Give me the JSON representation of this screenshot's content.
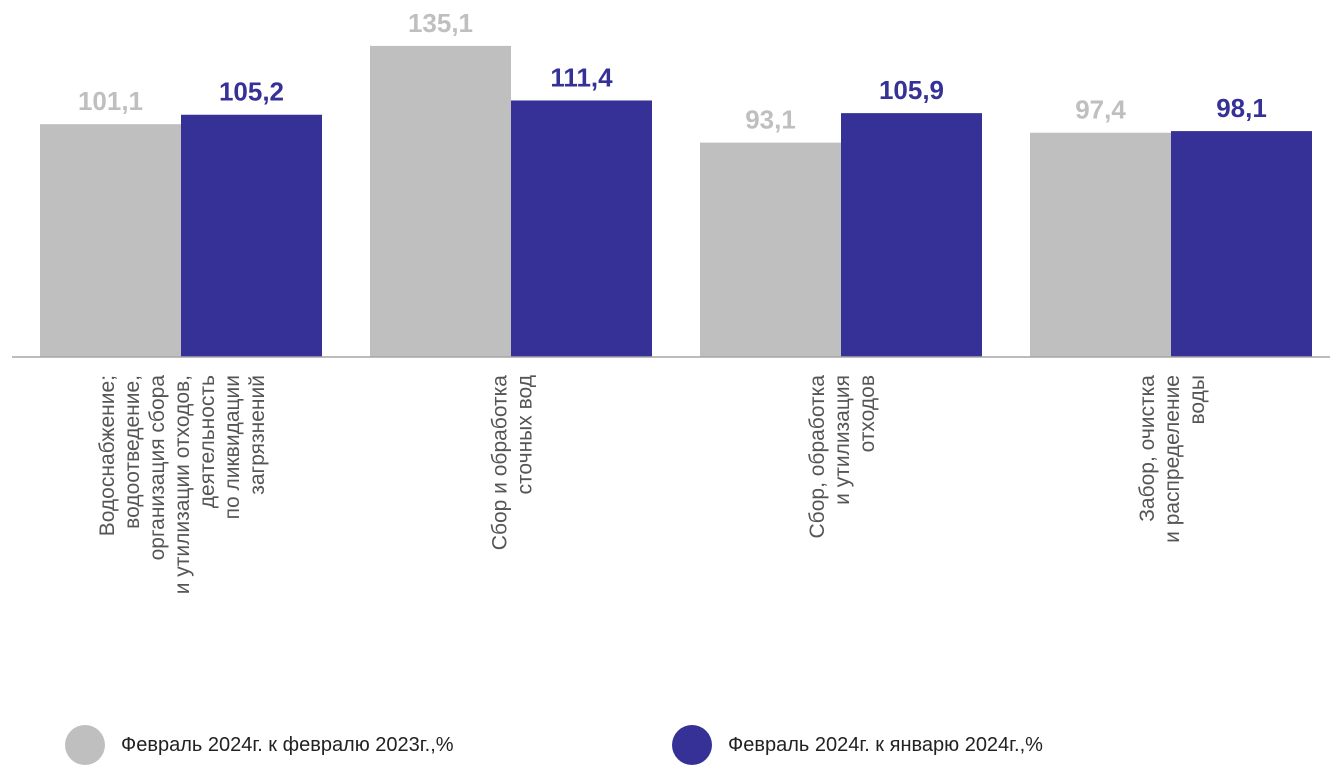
{
  "chart_data": {
    "type": "bar",
    "categories": [
      [
        "Водоснабжение;",
        "водоотведение,",
        "организация сбора",
        "и утилизации отходов,",
        "деятельность",
        "по ликвидации",
        "загрязнений"
      ],
      [
        "Сбор и обработка",
        "сточных вод"
      ],
      [
        "Сбор, обработка",
        "и утилизация",
        "отходов"
      ],
      [
        "Забор, очистка",
        "и распределение",
        "воды"
      ]
    ],
    "series": [
      {
        "name": "Февраль 2024г. к февралю 2023г.,%",
        "color": "#bfbfbf",
        "label_color": "#bfbfbf",
        "values": [
          101.1,
          135.1,
          93.1,
          97.4
        ]
      },
      {
        "name": "Февраль 2024г. к январю 2024г.,%",
        "color": "#353196",
        "label_color": "#353196",
        "values": [
          105.2,
          111.4,
          105.9,
          98.1
        ]
      }
    ],
    "value_labels": [
      [
        "101,1",
        "135,1",
        "93,1",
        "97,4"
      ],
      [
        "105,2",
        "111,4",
        "105,9",
        "98,1"
      ]
    ],
    "ylim": [
      0,
      142
    ],
    "grid": false,
    "legend_position": "bottom"
  }
}
